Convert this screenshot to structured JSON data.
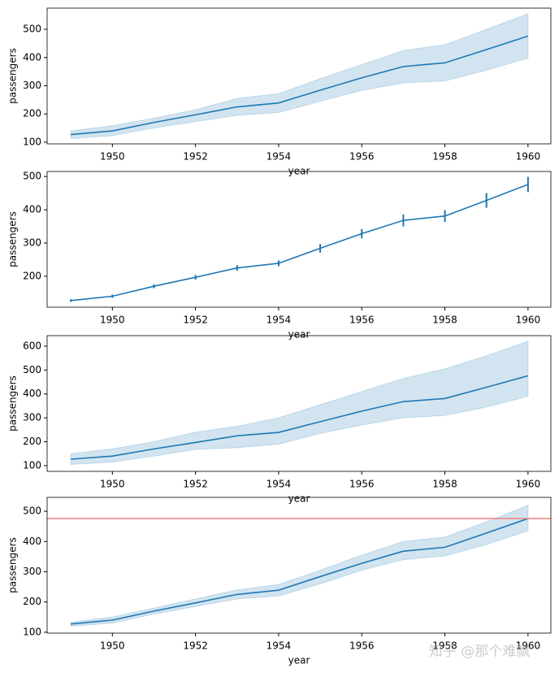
{
  "watermark": "知乎 @那个难飘",
  "chart_data": [
    {
      "type": "band",
      "xlabel": "year",
      "ylabel": "passengers",
      "color": "#1f77b4",
      "x": [
        1949,
        1950,
        1951,
        1952,
        1953,
        1954,
        1955,
        1956,
        1957,
        1958,
        1959,
        1960
      ],
      "values": [
        127,
        140,
        170,
        197,
        225,
        239,
        284,
        328,
        368,
        381,
        428,
        476
      ],
      "lower": [
        113,
        123,
        150,
        173,
        195,
        205,
        245,
        283,
        310,
        317,
        355,
        398
      ],
      "upper": [
        140,
        158,
        185,
        215,
        255,
        272,
        325,
        375,
        425,
        445,
        500,
        555
      ],
      "xlim": [
        1948.43,
        1960.55
      ],
      "xticks": [
        1950,
        1952,
        1954,
        1956,
        1958,
        1960
      ],
      "ylim": [
        94,
        575
      ],
      "yticks": [
        100,
        200,
        300,
        400,
        500
      ]
    },
    {
      "type": "errorbar",
      "xlabel": "year",
      "ylabel": "passengers",
      "color": "#1f77b4",
      "x": [
        1949,
        1950,
        1951,
        1952,
        1953,
        1954,
        1955,
        1956,
        1957,
        1958,
        1959,
        1960
      ],
      "values": [
        127,
        140,
        170,
        197,
        225,
        239,
        284,
        328,
        368,
        381,
        428,
        476
      ],
      "error": [
        4,
        5,
        6,
        7,
        8,
        9,
        13,
        14,
        18,
        18,
        22,
        23
      ],
      "xlim": [
        1948.43,
        1960.55
      ],
      "xticks": [
        1950,
        1952,
        1954,
        1956,
        1958,
        1960
      ],
      "ylim": [
        107,
        515
      ],
      "yticks": [
        200,
        300,
        400,
        500
      ]
    },
    {
      "type": "band",
      "xlabel": "year",
      "ylabel": "passengers",
      "color": "#1f77b4",
      "x": [
        1949,
        1950,
        1951,
        1952,
        1953,
        1954,
        1955,
        1956,
        1957,
        1958,
        1959,
        1960
      ],
      "values": [
        127,
        140,
        170,
        197,
        225,
        239,
        284,
        328,
        368,
        381,
        428,
        476
      ],
      "lower": [
        105,
        115,
        140,
        168,
        175,
        190,
        235,
        270,
        300,
        310,
        345,
        390
      ],
      "upper": [
        150,
        170,
        200,
        240,
        265,
        300,
        355,
        410,
        465,
        505,
        560,
        620
      ],
      "xlim": [
        1948.43,
        1960.55
      ],
      "xticks": [
        1950,
        1952,
        1954,
        1956,
        1958,
        1960
      ],
      "ylim": [
        76,
        644
      ],
      "yticks": [
        100,
        200,
        300,
        400,
        500,
        600
      ]
    },
    {
      "type": "band",
      "xlabel": "year",
      "ylabel": "passengers",
      "color": "#1f77b4",
      "x": [
        1949,
        1950,
        1951,
        1952,
        1953,
        1954,
        1955,
        1956,
        1957,
        1958,
        1959,
        1960
      ],
      "values": [
        127,
        140,
        170,
        197,
        225,
        239,
        284,
        328,
        368,
        381,
        428,
        476
      ],
      "lower": [
        120,
        130,
        160,
        185,
        210,
        220,
        260,
        305,
        340,
        352,
        390,
        435
      ],
      "upper": [
        133,
        150,
        180,
        210,
        240,
        258,
        305,
        355,
        400,
        415,
        465,
        520
      ],
      "hline": {
        "value": 476,
        "color": "#f08080"
      },
      "xlim": [
        1948.43,
        1960.55
      ],
      "xticks": [
        1950,
        1952,
        1954,
        1956,
        1958,
        1960
      ],
      "ylim": [
        97,
        546
      ],
      "yticks": [
        100,
        200,
        300,
        400,
        500
      ]
    }
  ]
}
